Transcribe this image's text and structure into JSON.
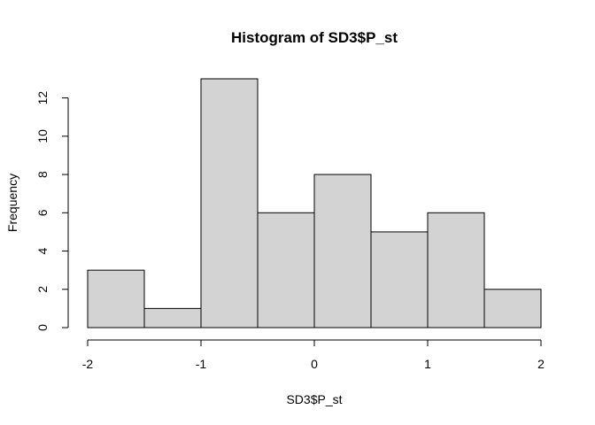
{
  "chart_data": {
    "type": "bar",
    "title": "Histogram of SD3$P_st",
    "xlabel": "SD3$P_st",
    "ylabel": "Frequency",
    "bins": [
      {
        "start": -2.0,
        "end": -1.5,
        "count": 3
      },
      {
        "start": -1.5,
        "end": -1.0,
        "count": 1
      },
      {
        "start": -1.0,
        "end": -0.5,
        "count": 13
      },
      {
        "start": -0.5,
        "end": 0.0,
        "count": 6
      },
      {
        "start": 0.0,
        "end": 0.5,
        "count": 8
      },
      {
        "start": 0.5,
        "end": 1.0,
        "count": 5
      },
      {
        "start": 1.0,
        "end": 1.5,
        "count": 6
      },
      {
        "start": 1.5,
        "end": 2.0,
        "count": 2
      }
    ],
    "xlim": [
      -2,
      2
    ],
    "ylim": [
      0,
      13
    ],
    "x_ticks": [
      -2,
      -1,
      0,
      1,
      2
    ],
    "y_ticks": [
      0,
      2,
      4,
      6,
      8,
      10,
      12
    ],
    "bar_color": "#d3d3d3",
    "border_color": "#000000",
    "grid": false
  }
}
